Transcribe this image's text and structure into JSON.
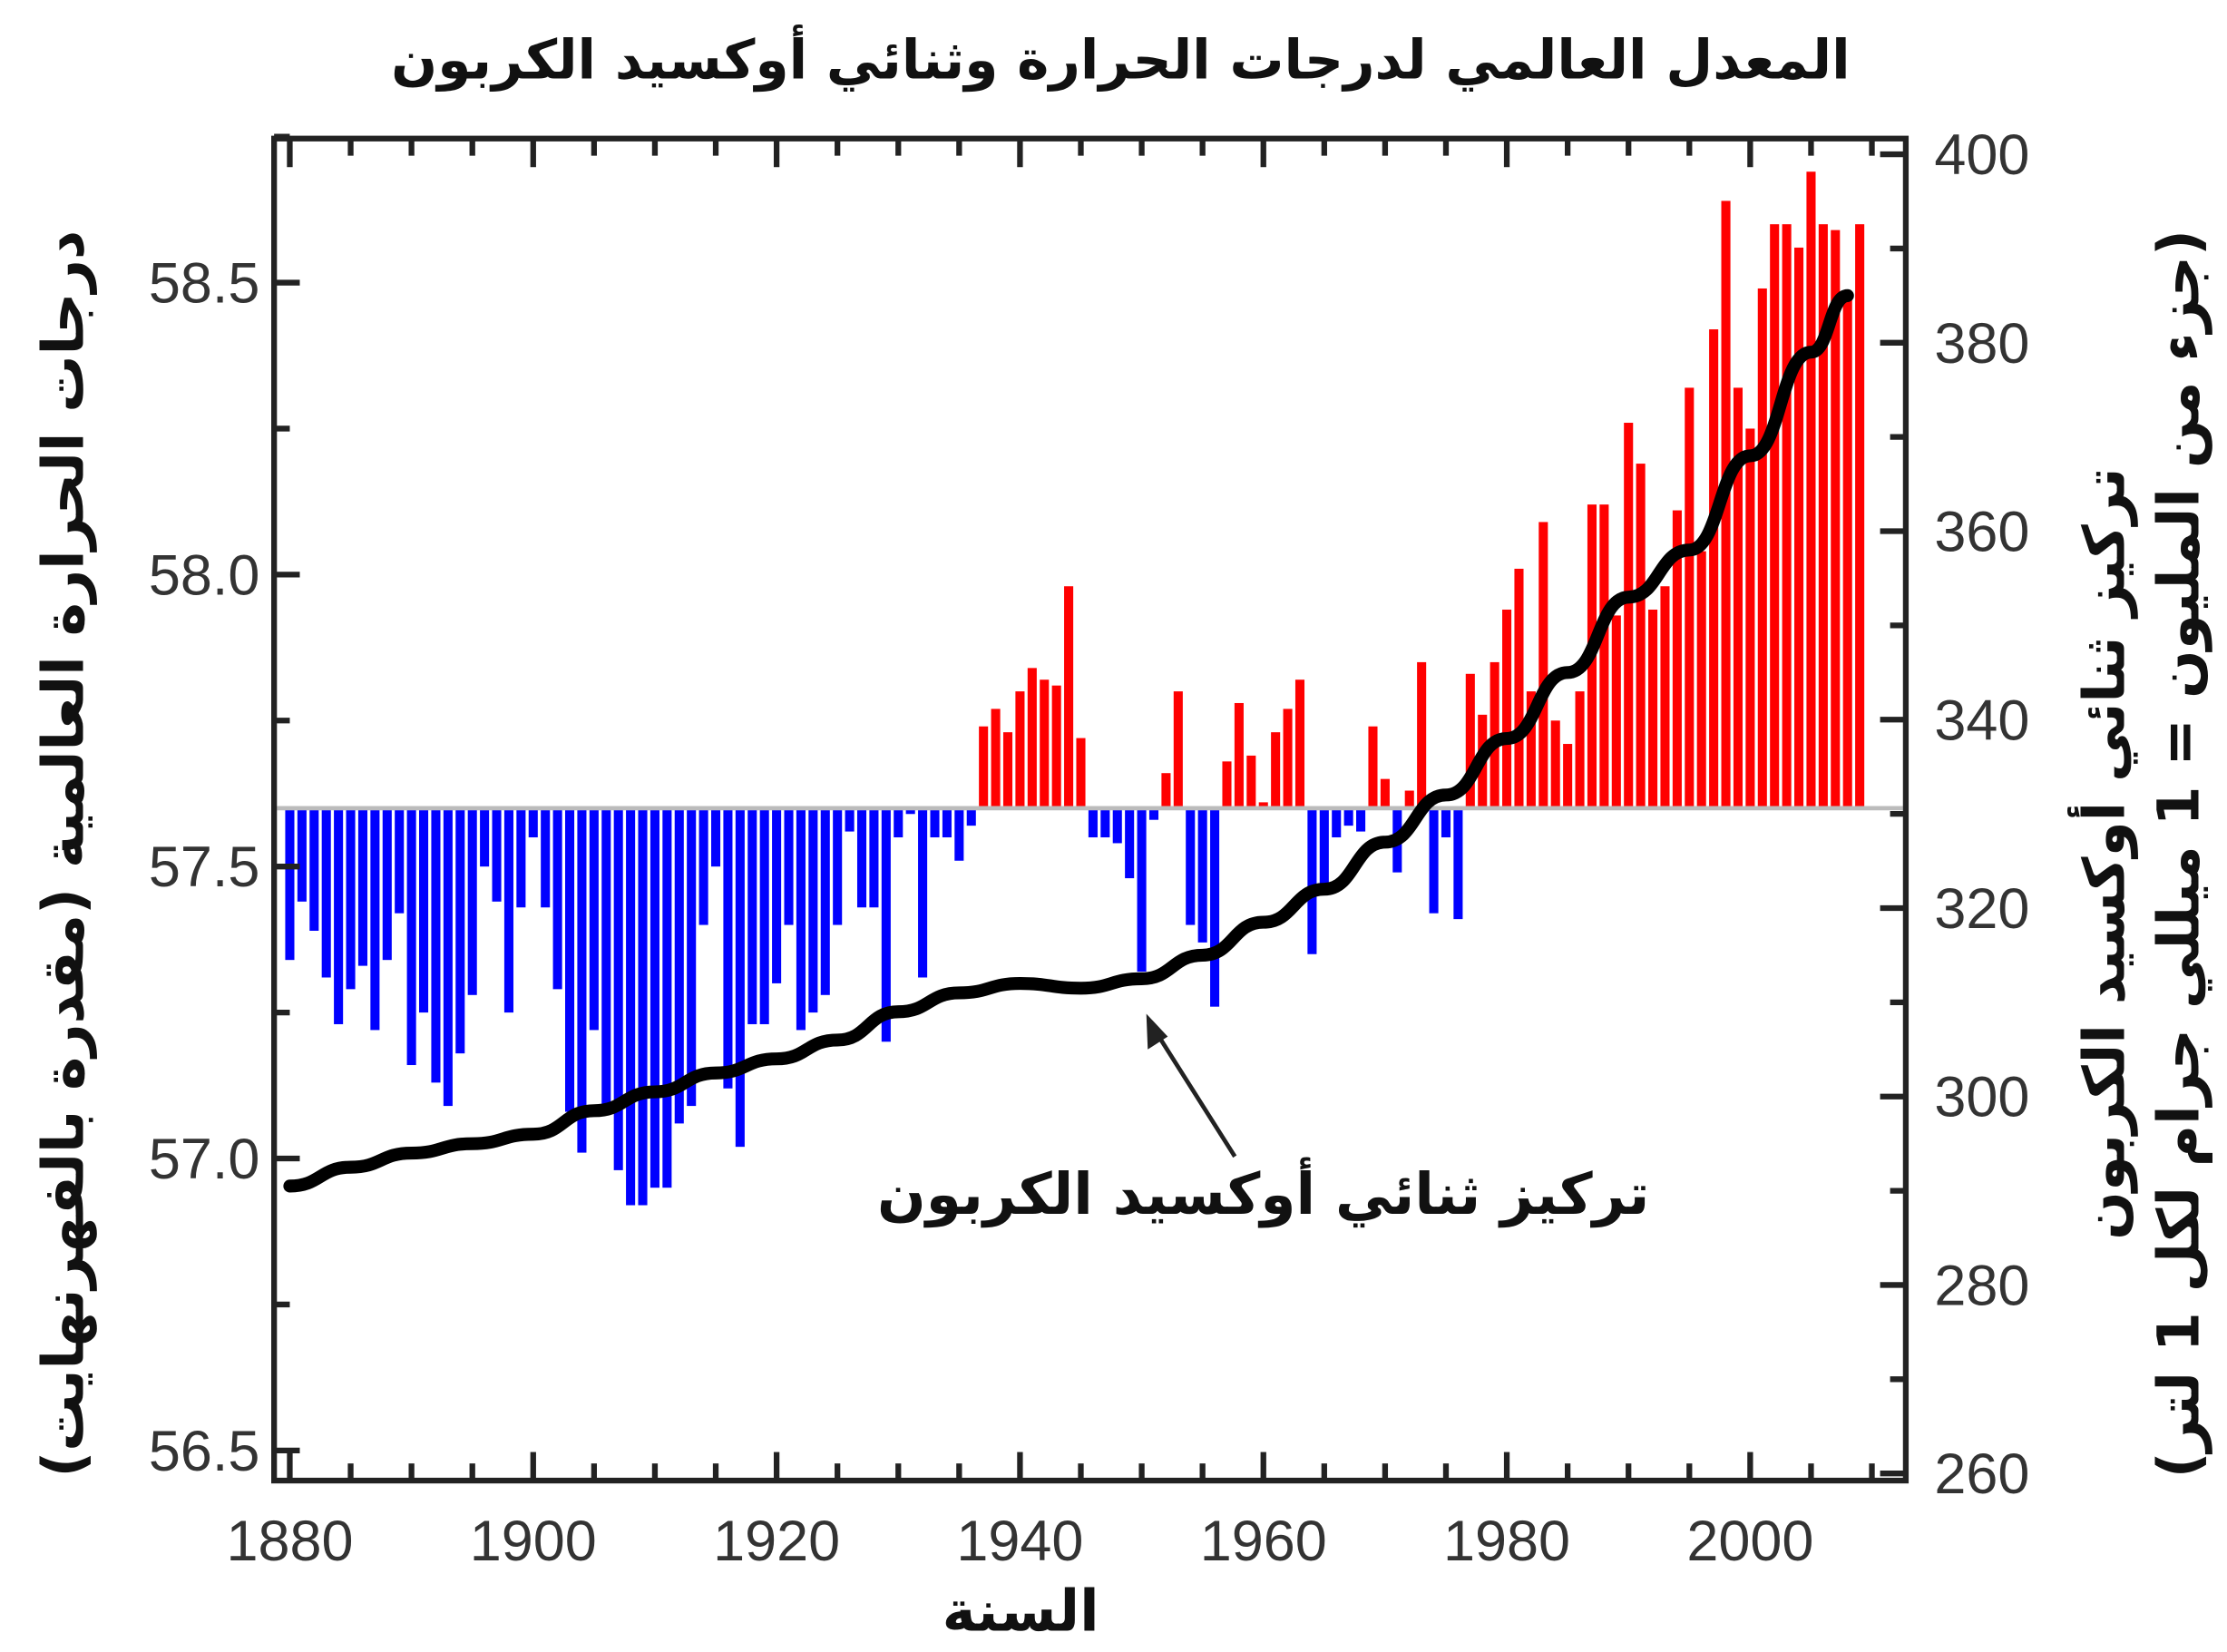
{
  "chart_data": {
    "type": "bar",
    "title": "المعدل العالمي لدرجات الحرارة وثنائي أوكسيد الكربون",
    "xlabel": "السنة",
    "ylabel": "درجات الحرارة العالمية (مقدرة بالفهرنهايت)",
    "ylabel_right_line1": "تركيز ثنائي أوكسيد الكربون",
    "ylabel_right_line2": "(جزء من المليون = 1 ميللي جرام لكل 1 لتر)",
    "annotation": "تركيز ثنائي أوكسيد الكربون",
    "ylim": [
      56.45,
      58.78
    ],
    "ylim_right": [
      258,
      407
    ],
    "xlim": [
      1878,
      2012
    ],
    "baseline": 57.6,
    "x_ticks": [
      "1880",
      "1900",
      "1920",
      "1940",
      "1960",
      "1980",
      "2000"
    ],
    "y_ticks": [
      "56.5",
      "57.0",
      "57.5",
      "58.0",
      "58.5"
    ],
    "y_ticks_right": [
      "260",
      "280",
      "300",
      "320",
      "340",
      "360",
      "380",
      "400"
    ],
    "colors": {
      "above": "#ff0000",
      "below": "#0000ff",
      "line": "#000000",
      "baseline": "#bbbbbb"
    },
    "temperature": {
      "start_year": 1880,
      "values": [
        57.34,
        57.44,
        57.39,
        57.31,
        57.23,
        57.29,
        57.33,
        57.22,
        57.34,
        57.42,
        57.16,
        57.25,
        57.13,
        57.09,
        57.18,
        57.28,
        57.5,
        57.44,
        57.25,
        57.43,
        57.55,
        57.43,
        57.29,
        57.08,
        57.01,
        57.22,
        57.08,
        56.98,
        56.92,
        56.92,
        56.95,
        56.95,
        57.06,
        57.09,
        57.4,
        57.5,
        57.12,
        57.02,
        57.23,
        57.23,
        57.3,
        57.4,
        57.22,
        57.25,
        57.28,
        57.4,
        57.56,
        57.43,
        57.43,
        57.2,
        57.55,
        57.59,
        57.31,
        57.55,
        57.55,
        57.51,
        57.57,
        57.74,
        57.77,
        57.73,
        57.8,
        57.84,
        57.82,
        57.81,
        57.98,
        57.72,
        57.55,
        57.55,
        57.54,
        57.48,
        57.32,
        57.58,
        57.66,
        57.8,
        57.4,
        57.37,
        57.26,
        57.68,
        57.78,
        57.69,
        57.61,
        57.73,
        57.77,
        57.82,
        57.35,
        57.47,
        57.55,
        57.57,
        57.56,
        57.74,
        57.65,
        57.49,
        57.63,
        57.85,
        57.42,
        57.55,
        57.41,
        57.83,
        57.76,
        57.85,
        57.94,
        58.01,
        57.8,
        58.09,
        57.75,
        57.71,
        57.8,
        58.12,
        58.12,
        57.93,
        58.26,
        58.19,
        57.94,
        57.98,
        58.11,
        58.32,
        58.04,
        58.42,
        58.64,
        58.32,
        58.25,
        58.49,
        58.6,
        58.6,
        58.56,
        58.69,
        58.6,
        58.59,
        58.47,
        58.6
      ]
    },
    "co2": {
      "years": [
        1880,
        1885,
        1890,
        1895,
        1900,
        1905,
        1910,
        1915,
        1920,
        1925,
        1930,
        1935,
        1940,
        1945,
        1950,
        1955,
        1960,
        1965,
        1970,
        1975,
        1980,
        1985,
        1990,
        1995,
        2000,
        2005,
        2008
      ],
      "values": [
        290.5,
        292.5,
        294,
        295,
        296,
        298.5,
        300.5,
        302.5,
        304,
        306,
        309,
        311,
        312,
        311.5,
        312.5,
        315,
        318.5,
        322,
        327,
        332,
        338,
        345,
        353,
        358,
        368,
        379,
        385
      ]
    }
  }
}
